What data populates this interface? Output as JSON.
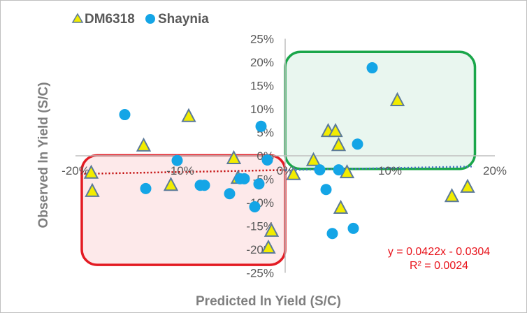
{
  "chart_data": {
    "type": "scatter",
    "xlabel": "Predicted ln Yield (S/C)",
    "ylabel": "Observed ln Yield (S/C)",
    "xlim": [
      -20,
      20
    ],
    "ylim": [
      -25,
      25
    ],
    "x_ticks": [
      "-20%",
      "-10%",
      "0%",
      "10%",
      "20%"
    ],
    "x_tick_values": [
      -20,
      -10,
      0,
      10,
      20
    ],
    "y_ticks": [
      "25%",
      "20%",
      "15%",
      "10%",
      "5%",
      "0%",
      "-5%",
      "-10%",
      "-15%",
      "-20%",
      "-25%"
    ],
    "y_tick_values": [
      25,
      20,
      15,
      10,
      5,
      0,
      -5,
      -10,
      -15,
      -20,
      -25
    ],
    "grid": false,
    "legend_position": "top-left",
    "series": [
      {
        "name": "DM6318",
        "marker": "triangle",
        "color": "#f2ec00",
        "edge": "#5b7a99",
        "points": [
          [
            -18.5,
            -3.7
          ],
          [
            -18.4,
            -7.6
          ],
          [
            -13.5,
            2.1
          ],
          [
            -9.2,
            8.4
          ],
          [
            -10.9,
            -6.3
          ],
          [
            -4.9,
            -0.6
          ],
          [
            -4.5,
            -4.8
          ],
          [
            -1.3,
            -16.1
          ],
          [
            -1.6,
            -19.7
          ],
          [
            0.8,
            -4.0
          ],
          [
            2.7,
            -1.0
          ],
          [
            4.1,
            5.2
          ],
          [
            4.8,
            5.2
          ],
          [
            5.1,
            2.2
          ],
          [
            5.9,
            -3.6
          ],
          [
            5.3,
            -11.2
          ],
          [
            10.7,
            11.8
          ],
          [
            15.9,
            -8.7
          ],
          [
            17.4,
            -6.7
          ]
        ]
      },
      {
        "name": "Shaynia",
        "marker": "circle",
        "color": "#14a5e6",
        "points": [
          [
            -15.3,
            8.8
          ],
          [
            -10.3,
            -1.0
          ],
          [
            -13.3,
            -7.0
          ],
          [
            -8.1,
            -6.3
          ],
          [
            -7.7,
            -6.3
          ],
          [
            -5.3,
            -8.1
          ],
          [
            -4.3,
            -4.9
          ],
          [
            -3.9,
            -4.9
          ],
          [
            -2.3,
            6.3
          ],
          [
            -1.7,
            -0.9
          ],
          [
            -2.5,
            -6.0
          ],
          [
            -2.9,
            -10.9
          ],
          [
            8.3,
            18.8
          ],
          [
            6.9,
            2.5
          ],
          [
            3.3,
            -3.0
          ],
          [
            5.1,
            -3.0
          ],
          [
            3.9,
            -7.2
          ],
          [
            4.5,
            -16.6
          ],
          [
            6.5,
            -15.5
          ]
        ]
      }
    ],
    "trendline": {
      "slope": 0.0422,
      "intercept": -0.0304,
      "left_color": "#c00000",
      "right_color": "#4472c4"
    },
    "annotations": {
      "equation": "y = 0.0422x - 0.0304",
      "r_squared": "R² = 0.0024"
    },
    "highlight_boxes": [
      {
        "quadrant": "bottom-left",
        "x_range": [
          -19.4,
          0
        ],
        "y_range": [
          -23.3,
          0.1
        ],
        "edge": "#e31b23",
        "fill": "#fde9ea"
      },
      {
        "quadrant": "top-right",
        "x_range": [
          0,
          18.1
        ],
        "y_range": [
          -2.8,
          22.2
        ],
        "edge": "#1aa64a",
        "fill": "#e9f6ef"
      }
    ]
  }
}
